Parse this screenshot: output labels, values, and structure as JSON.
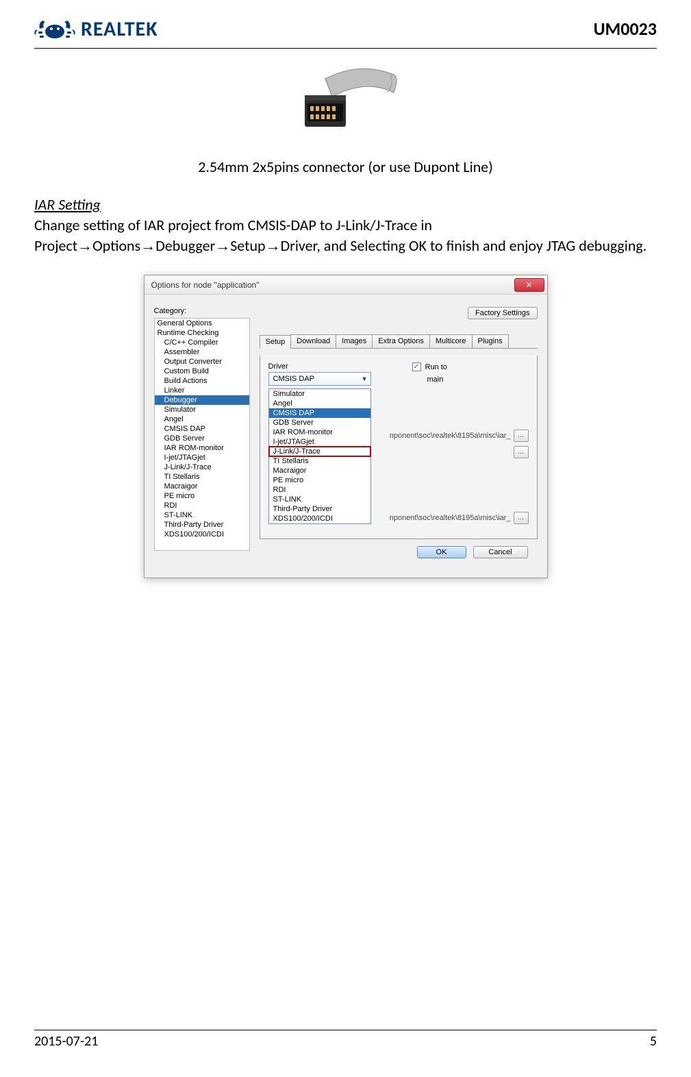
{
  "header": {
    "logo_text": "REALTEK",
    "doc_id": "UM0023",
    "logo_color": "#003c71"
  },
  "figure": {
    "caption": "2.54mm 2x5pins connector (or use Dupont Line)"
  },
  "section": {
    "title": "IAR Setting",
    "para_before": "Change setting of IAR project from CMSIS-DAP to J-Link/J-Trace in Project",
    "crumbs": [
      "Options",
      "Debugger",
      "Setup",
      "Driver"
    ],
    "para_after": ", and Selecting OK to finish and enjoy JTAG debugging."
  },
  "dialog": {
    "title": "Options for node \"application\"",
    "close_glyph": "✕",
    "factory_btn": "Factory Settings",
    "category_label": "Category:",
    "categories": [
      {
        "label": "General Options",
        "indent": false,
        "selected": false
      },
      {
        "label": "Runtime Checking",
        "indent": false,
        "selected": false
      },
      {
        "label": "C/C++ Compiler",
        "indent": true,
        "selected": false
      },
      {
        "label": "Assembler",
        "indent": true,
        "selected": false
      },
      {
        "label": "Output Converter",
        "indent": true,
        "selected": false
      },
      {
        "label": "Custom Build",
        "indent": true,
        "selected": false
      },
      {
        "label": "Build Actions",
        "indent": true,
        "selected": false
      },
      {
        "label": "Linker",
        "indent": true,
        "selected": false
      },
      {
        "label": "Debugger",
        "indent": true,
        "selected": true
      },
      {
        "label": "Simulator",
        "indent": true,
        "selected": false
      },
      {
        "label": "Angel",
        "indent": true,
        "selected": false
      },
      {
        "label": "CMSIS DAP",
        "indent": true,
        "selected": false
      },
      {
        "label": "GDB Server",
        "indent": true,
        "selected": false
      },
      {
        "label": "IAR ROM-monitor",
        "indent": true,
        "selected": false
      },
      {
        "label": "I-jet/JTAGjet",
        "indent": true,
        "selected": false
      },
      {
        "label": "J-Link/J-Trace",
        "indent": true,
        "selected": false
      },
      {
        "label": "TI Stellaris",
        "indent": true,
        "selected": false
      },
      {
        "label": "Macraigor",
        "indent": true,
        "selected": false
      },
      {
        "label": "PE micro",
        "indent": true,
        "selected": false
      },
      {
        "label": "RDI",
        "indent": true,
        "selected": false
      },
      {
        "label": "ST-LINK",
        "indent": true,
        "selected": false
      },
      {
        "label": "Third-Party Driver",
        "indent": true,
        "selected": false
      },
      {
        "label": "XDS100/200/ICDI",
        "indent": true,
        "selected": false
      }
    ],
    "tabs": [
      {
        "label": "Setup",
        "active": true
      },
      {
        "label": "Download",
        "active": false
      },
      {
        "label": "Images",
        "active": false
      },
      {
        "label": "Extra Options",
        "active": false
      },
      {
        "label": "Multicore",
        "active": false
      },
      {
        "label": "Plugins",
        "active": false
      }
    ],
    "driver_label": "Driver",
    "driver_selected": "CMSIS DAP",
    "runto_label": "Run to",
    "runto_checked": true,
    "runto_value": "main",
    "dropdown": [
      {
        "label": "Simulator",
        "hl": false,
        "boxed": false
      },
      {
        "label": "Angel",
        "hl": false,
        "boxed": false
      },
      {
        "label": "CMSIS DAP",
        "hl": true,
        "boxed": false
      },
      {
        "label": "GDB Server",
        "hl": false,
        "boxed": false
      },
      {
        "label": "IAR ROM-monitor",
        "hl": false,
        "boxed": false
      },
      {
        "label": "I-jet/JTAGjet",
        "hl": false,
        "boxed": false
      },
      {
        "label": "J-Link/J-Trace",
        "hl": false,
        "boxed": true
      },
      {
        "label": "TI Stellaris",
        "hl": false,
        "boxed": false
      },
      {
        "label": "Macraigor",
        "hl": false,
        "boxed": false
      },
      {
        "label": "PE micro",
        "hl": false,
        "boxed": false
      },
      {
        "label": "RDI",
        "hl": false,
        "boxed": false
      },
      {
        "label": "ST-LINK",
        "hl": false,
        "boxed": false
      },
      {
        "label": "Third-Party Driver",
        "hl": false,
        "boxed": false
      },
      {
        "label": "XDS100/200/ICDI",
        "hl": false,
        "boxed": false
      }
    ],
    "path_fragment_1": "nponent\\soc\\realtek\\8195a\\misc\\iar_",
    "path_fragment_2": "nponent\\soc\\realtek\\8195a\\misc\\iar_",
    "browse_glyph": "...",
    "ok_label": "OK",
    "cancel_label": "Cancel"
  },
  "footer": {
    "date": "2015-07-21",
    "page": "5"
  },
  "colors": {
    "selection_bg": "#2b6fb6",
    "highlight_box": "#c00"
  }
}
